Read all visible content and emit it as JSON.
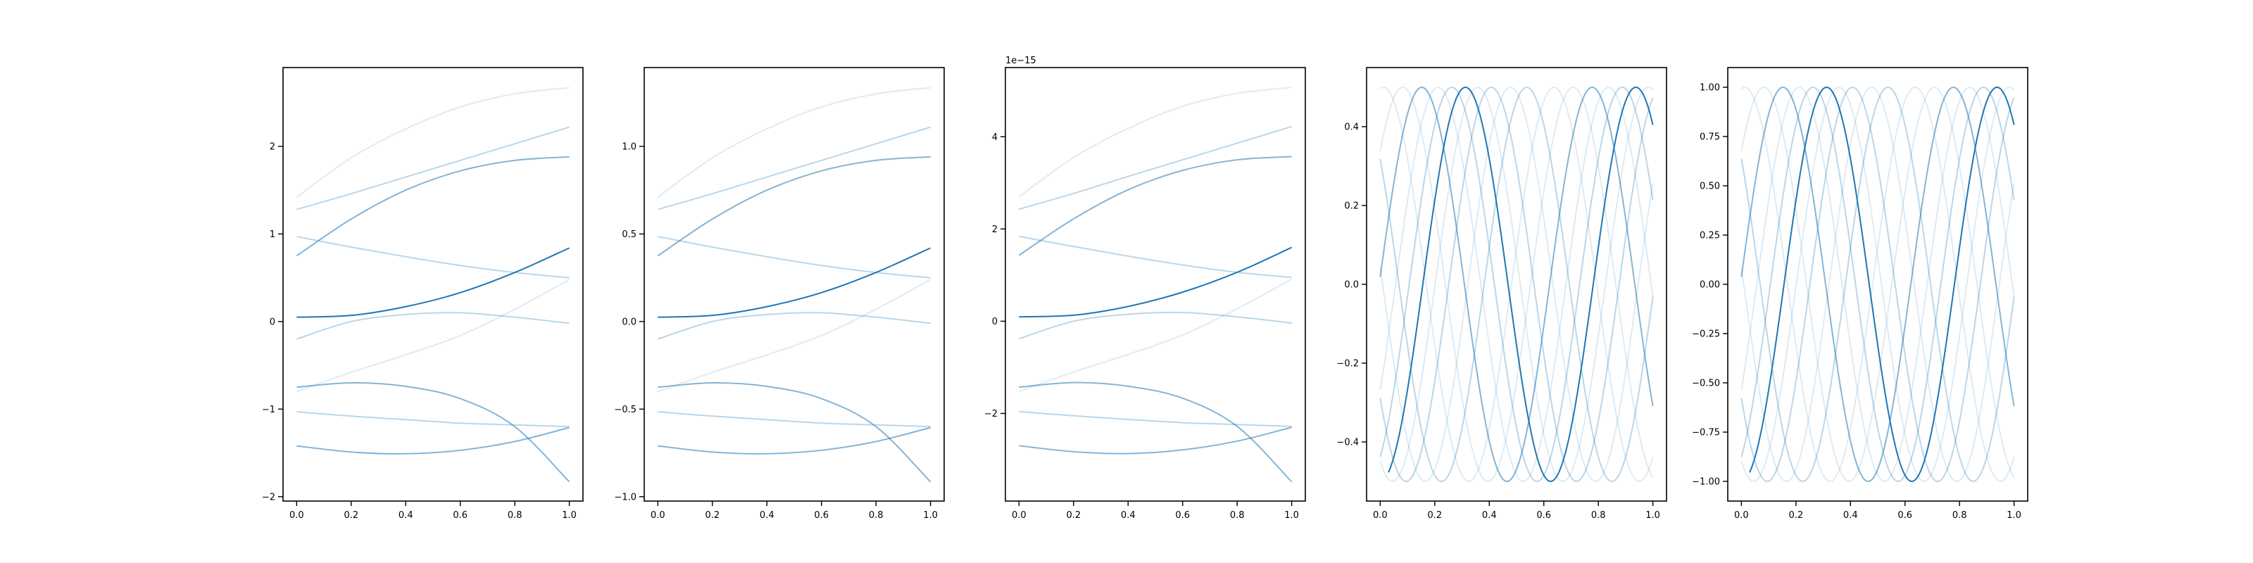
{
  "figure": {
    "background": "#ffffff",
    "line_color": "#1f77b4"
  },
  "chart_data": [
    {
      "type": "line",
      "title": "",
      "xlabel": "",
      "ylabel": "",
      "offset_text": "",
      "grid": false,
      "legend": "none",
      "xlim": [
        -0.05,
        1.05
      ],
      "ylim": [
        -2.05,
        2.9
      ],
      "xticks": [
        0.0,
        0.2,
        0.4,
        0.6,
        0.8,
        1.0
      ],
      "xtick_labels": [
        "0.0",
        "0.2",
        "0.4",
        "0.6",
        "0.8",
        "1.0"
      ],
      "yticks": [
        -2,
        -1,
        0,
        1,
        2
      ],
      "ytick_labels": [
        "−2",
        "−1",
        "0",
        "1",
        "2"
      ],
      "x": [
        0.0,
        0.2,
        0.4,
        0.6,
        0.8,
        1.0
      ],
      "series": [
        {
          "opacity": 1.0,
          "values": [
            0.05,
            0.07,
            0.17,
            0.33,
            0.56,
            0.84
          ]
        },
        {
          "opacity": 0.55,
          "values": [
            0.75,
            1.17,
            1.5,
            1.72,
            1.84,
            1.88
          ]
        },
        {
          "opacity": 0.55,
          "values": [
            -0.75,
            -0.7,
            -0.74,
            -0.88,
            -1.2,
            -1.83
          ]
        },
        {
          "opacity": 0.55,
          "values": [
            -1.42,
            -1.49,
            -1.51,
            -1.47,
            -1.37,
            -1.21
          ]
        },
        {
          "opacity": 0.3,
          "values": [
            1.28,
            1.46,
            1.65,
            1.84,
            2.03,
            2.22
          ]
        },
        {
          "opacity": 0.3,
          "values": [
            0.97,
            0.85,
            0.74,
            0.64,
            0.56,
            0.5
          ]
        },
        {
          "opacity": 0.3,
          "values": [
            -0.2,
            0.0,
            0.08,
            0.1,
            0.05,
            -0.02
          ]
        },
        {
          "opacity": 0.3,
          "values": [
            -1.03,
            -1.08,
            -1.12,
            -1.16,
            -1.18,
            -1.2
          ]
        },
        {
          "opacity": 0.15,
          "values": [
            1.42,
            1.87,
            2.2,
            2.45,
            2.6,
            2.67
          ]
        },
        {
          "opacity": 0.15,
          "values": [
            -0.8,
            -0.58,
            -0.38,
            -0.16,
            0.14,
            0.48
          ]
        }
      ]
    },
    {
      "type": "line",
      "title": "",
      "xlabel": "",
      "ylabel": "",
      "offset_text": "",
      "grid": false,
      "legend": "none",
      "xlim": [
        -0.05,
        1.05
      ],
      "ylim": [
        -1.025,
        1.45
      ],
      "xticks": [
        0.0,
        0.2,
        0.4,
        0.6,
        0.8,
        1.0
      ],
      "xtick_labels": [
        "0.0",
        "0.2",
        "0.4",
        "0.6",
        "0.8",
        "1.0"
      ],
      "yticks": [
        -1.0,
        -0.5,
        0.0,
        0.5,
        1.0
      ],
      "ytick_labels": [
        "−1.0",
        "−0.5",
        "0.0",
        "0.5",
        "1.0"
      ],
      "x": [
        0.0,
        0.2,
        0.4,
        0.6,
        0.8,
        1.0
      ],
      "series": [
        {
          "opacity": 1.0,
          "values": [
            0.025,
            0.035,
            0.085,
            0.165,
            0.28,
            0.42
          ]
        },
        {
          "opacity": 0.55,
          "values": [
            0.375,
            0.585,
            0.75,
            0.86,
            0.92,
            0.94
          ]
        },
        {
          "opacity": 0.55,
          "values": [
            -0.375,
            -0.35,
            -0.37,
            -0.44,
            -0.6,
            -0.915
          ]
        },
        {
          "opacity": 0.55,
          "values": [
            -0.71,
            -0.745,
            -0.755,
            -0.735,
            -0.685,
            -0.605
          ]
        },
        {
          "opacity": 0.3,
          "values": [
            0.64,
            0.73,
            0.825,
            0.92,
            1.015,
            1.11
          ]
        },
        {
          "opacity": 0.3,
          "values": [
            0.485,
            0.425,
            0.37,
            0.32,
            0.28,
            0.25
          ]
        },
        {
          "opacity": 0.3,
          "values": [
            -0.1,
            0.0,
            0.04,
            0.05,
            0.025,
            -0.01
          ]
        },
        {
          "opacity": 0.3,
          "values": [
            -0.515,
            -0.54,
            -0.56,
            -0.58,
            -0.59,
            -0.6
          ]
        },
        {
          "opacity": 0.15,
          "values": [
            0.71,
            0.935,
            1.1,
            1.225,
            1.3,
            1.335
          ]
        },
        {
          "opacity": 0.15,
          "values": [
            -0.4,
            -0.29,
            -0.19,
            -0.08,
            0.07,
            0.24
          ]
        }
      ]
    },
    {
      "type": "line",
      "title": "",
      "xlabel": "",
      "ylabel": "",
      "offset_text": "1e−15",
      "grid": false,
      "legend": "none",
      "xlim": [
        -0.05,
        1.05
      ],
      "ylim": [
        -3.9,
        5.5
      ],
      "xticks": [
        0.0,
        0.2,
        0.4,
        0.6,
        0.8,
        1.0
      ],
      "xtick_labels": [
        "0.0",
        "0.2",
        "0.4",
        "0.6",
        "0.8",
        "1.0"
      ],
      "yticks": [
        -2,
        0,
        2,
        4
      ],
      "ytick_labels": [
        "−2",
        "0",
        "2",
        "4"
      ],
      "x": [
        0.0,
        0.2,
        0.4,
        0.6,
        0.8,
        1.0
      ],
      "series": [
        {
          "opacity": 1.0,
          "values": [
            0.095,
            0.13,
            0.32,
            0.63,
            1.06,
            1.6
          ]
        },
        {
          "opacity": 0.55,
          "values": [
            1.43,
            2.22,
            2.85,
            3.27,
            3.5,
            3.57
          ]
        },
        {
          "opacity": 0.55,
          "values": [
            -1.43,
            -1.33,
            -1.41,
            -1.67,
            -2.28,
            -3.48
          ]
        },
        {
          "opacity": 0.55,
          "values": [
            -2.7,
            -2.83,
            -2.87,
            -2.79,
            -2.6,
            -2.3
          ]
        },
        {
          "opacity": 0.3,
          "values": [
            2.43,
            2.77,
            3.14,
            3.5,
            3.86,
            4.22
          ]
        },
        {
          "opacity": 0.3,
          "values": [
            1.84,
            1.62,
            1.41,
            1.22,
            1.06,
            0.95
          ]
        },
        {
          "opacity": 0.3,
          "values": [
            -0.38,
            0.0,
            0.15,
            0.19,
            0.095,
            -0.04
          ]
        },
        {
          "opacity": 0.3,
          "values": [
            -1.96,
            -2.05,
            -2.13,
            -2.2,
            -2.24,
            -2.28
          ]
        },
        {
          "opacity": 0.15,
          "values": [
            2.7,
            3.55,
            4.18,
            4.66,
            4.94,
            5.07
          ]
        },
        {
          "opacity": 0.15,
          "values": [
            -1.52,
            -1.1,
            -0.72,
            -0.3,
            0.27,
            0.91
          ]
        }
      ]
    },
    {
      "type": "line",
      "title": "",
      "xlabel": "",
      "ylabel": "",
      "offset_text": "",
      "grid": false,
      "legend": "none",
      "xlim": [
        -0.05,
        1.05
      ],
      "ylim": [
        -0.55,
        0.55
      ],
      "xticks": [
        0.0,
        0.2,
        0.4,
        0.6,
        0.8,
        1.0
      ],
      "xtick_labels": [
        "0.0",
        "0.2",
        "0.4",
        "0.6",
        "0.8",
        "1.0"
      ],
      "yticks": [
        -0.4,
        -0.2,
        0.0,
        0.2,
        0.4
      ],
      "ytick_labels": [
        "−0.4",
        "−0.2",
        "0.0",
        "0.2",
        "0.4"
      ],
      "sine": {
        "amplitude": 0.5,
        "frequency": 1.6,
        "x_start": 0.0,
        "x_end": 1.0
      },
      "series": [
        {
          "opacity": 1.0,
          "x_start": 0.03,
          "phase": 0.0
        },
        {
          "opacity": 0.55,
          "x_start": 0.0,
          "phase": 0.16
        },
        {
          "opacity": 0.3,
          "x_start": 0.0,
          "phase": 0.05
        },
        {
          "opacity": 0.3,
          "x_start": 0.0,
          "phase": 0.4
        },
        {
          "opacity": 0.3,
          "x_start": 0.0,
          "phase": 0.53
        },
        {
          "opacity": 0.15,
          "x_start": 0.0,
          "phase": 0.1
        },
        {
          "opacity": 0.15,
          "x_start": 0.0,
          "phase": 0.23
        },
        {
          "opacity": 0.15,
          "x_start": 0.0,
          "phase": 0.3
        },
        {
          "opacity": 0.15,
          "x_start": 0.0,
          "phase": 0.46
        },
        {
          "opacity": 0.15,
          "x_start": 0.0,
          "phase": 0.58
        }
      ]
    },
    {
      "type": "line",
      "title": "",
      "xlabel": "",
      "ylabel": "",
      "offset_text": "",
      "grid": false,
      "legend": "none",
      "xlim": [
        -0.05,
        1.05
      ],
      "ylim": [
        -1.1,
        1.1
      ],
      "xticks": [
        0.0,
        0.2,
        0.4,
        0.6,
        0.8,
        1.0
      ],
      "xtick_labels": [
        "0.0",
        "0.2",
        "0.4",
        "0.6",
        "0.8",
        "1.0"
      ],
      "yticks": [
        -1.0,
        -0.75,
        -0.5,
        -0.25,
        0.0,
        0.25,
        0.5,
        0.75,
        1.0
      ],
      "ytick_labels": [
        "−1.00",
        "−0.75",
        "−0.50",
        "−0.25",
        "0.00",
        "0.25",
        "0.50",
        "0.75",
        "1.00"
      ],
      "sine": {
        "amplitude": 1.0,
        "frequency": 1.6,
        "x_start": 0.0,
        "x_end": 1.0
      },
      "series": [
        {
          "opacity": 1.0,
          "x_start": 0.03,
          "phase": 0.0
        },
        {
          "opacity": 0.55,
          "x_start": 0.0,
          "phase": 0.16
        },
        {
          "opacity": 0.3,
          "x_start": 0.0,
          "phase": 0.05
        },
        {
          "opacity": 0.3,
          "x_start": 0.0,
          "phase": 0.4
        },
        {
          "opacity": 0.3,
          "x_start": 0.0,
          "phase": 0.53
        },
        {
          "opacity": 0.15,
          "x_start": 0.0,
          "phase": 0.1
        },
        {
          "opacity": 0.15,
          "x_start": 0.0,
          "phase": 0.23
        },
        {
          "opacity": 0.15,
          "x_start": 0.0,
          "phase": 0.3
        },
        {
          "opacity": 0.15,
          "x_start": 0.0,
          "phase": 0.46
        },
        {
          "opacity": 0.15,
          "x_start": 0.0,
          "phase": 0.58
        }
      ]
    }
  ]
}
